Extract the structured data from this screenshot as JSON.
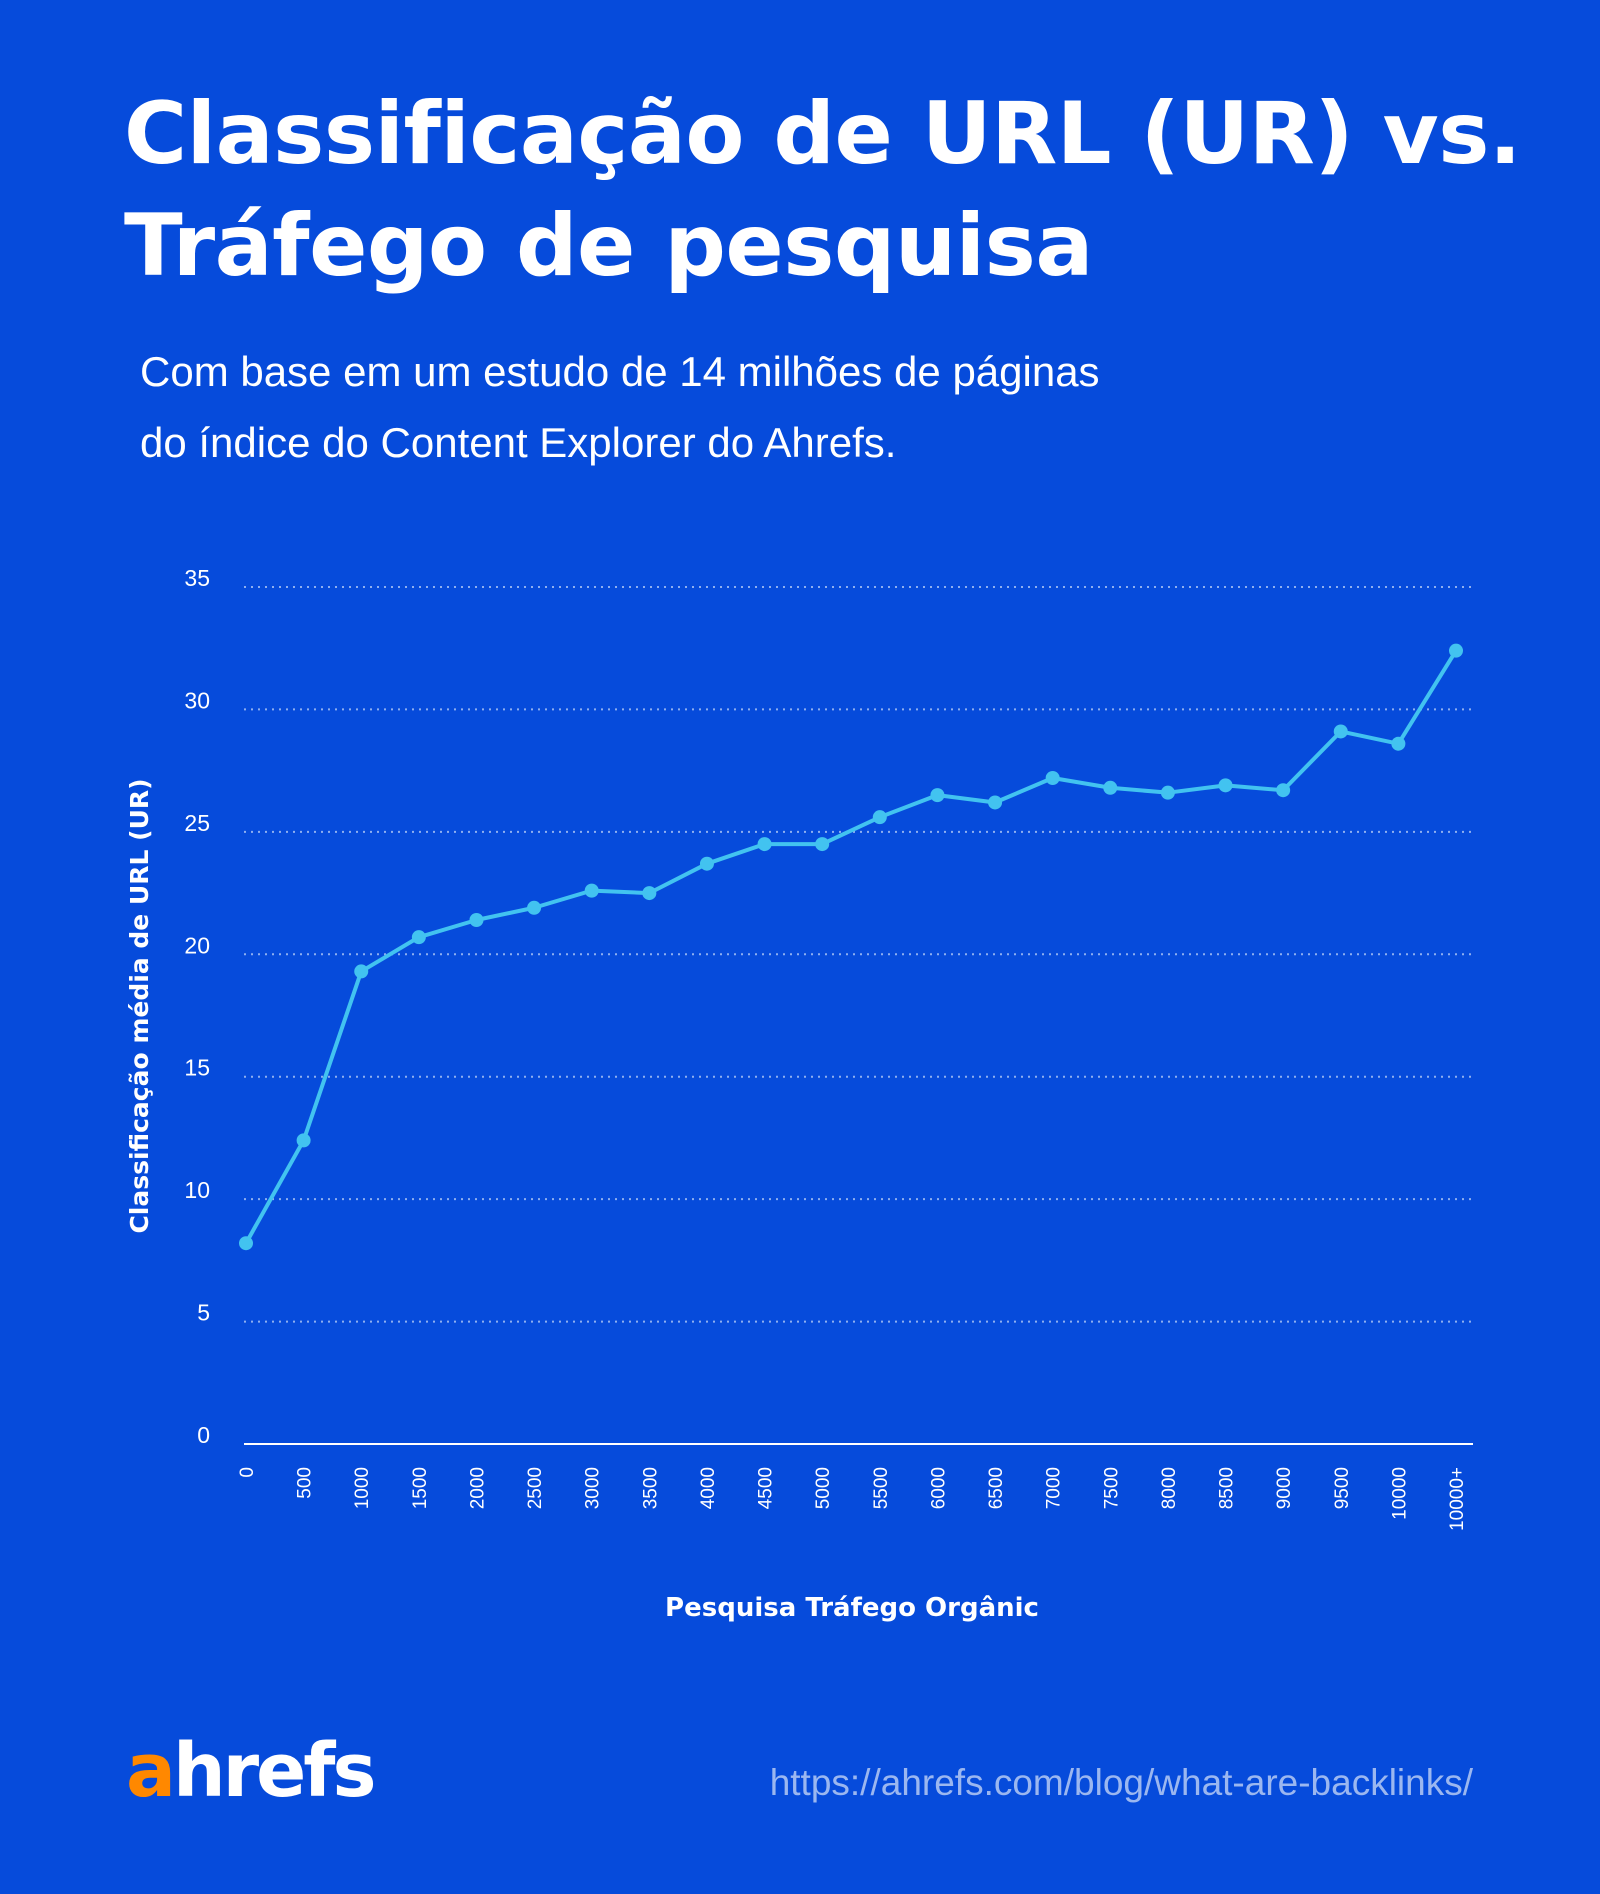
{
  "header": {
    "title_line1": "Classificação de URL (UR) vs.",
    "title_line2": "Tráfego de pesquisa",
    "subtitle_line1": "Com base em um estudo de 14 milhões de páginas",
    "subtitle_line2": "do índice do Content Explorer do Ahrefs."
  },
  "footer": {
    "logo": "ahrefs",
    "logo_a": "a",
    "logo_rest": "hrefs",
    "url": "https://ahrefs.com/blog/what-are-backlinks/"
  },
  "colors": {
    "background": "#064BDB",
    "line": "#42C3F0",
    "logo_accent": "#FF8800",
    "grid": "#8FB0F0"
  },
  "chart_data": {
    "type": "line",
    "title": "",
    "xlabel": "Pesquisa Tráfego Orgânic",
    "ylabel": "Classificação média de URL (UR)",
    "ylim": [
      0,
      35
    ],
    "yticks": [
      "0",
      "5",
      "10",
      "15",
      "20",
      "25",
      "30",
      "35"
    ],
    "grid": "horizontal dotted",
    "categories": [
      "0",
      "500",
      "1000",
      "1500",
      "2000",
      "2500",
      "3000",
      "3500",
      "4000",
      "4500",
      "5000",
      "5500",
      "6000",
      "6500",
      "7000",
      "7500",
      "8000",
      "8500",
      "9000",
      "9500",
      "10000",
      "10000+"
    ],
    "values": [
      8.2,
      12.4,
      19.3,
      20.7,
      21.4,
      21.9,
      22.6,
      22.5,
      23.7,
      24.5,
      24.5,
      25.6,
      26.5,
      26.2,
      27.2,
      26.8,
      26.6,
      26.9,
      26.7,
      29.1,
      28.6,
      32.4
    ]
  }
}
